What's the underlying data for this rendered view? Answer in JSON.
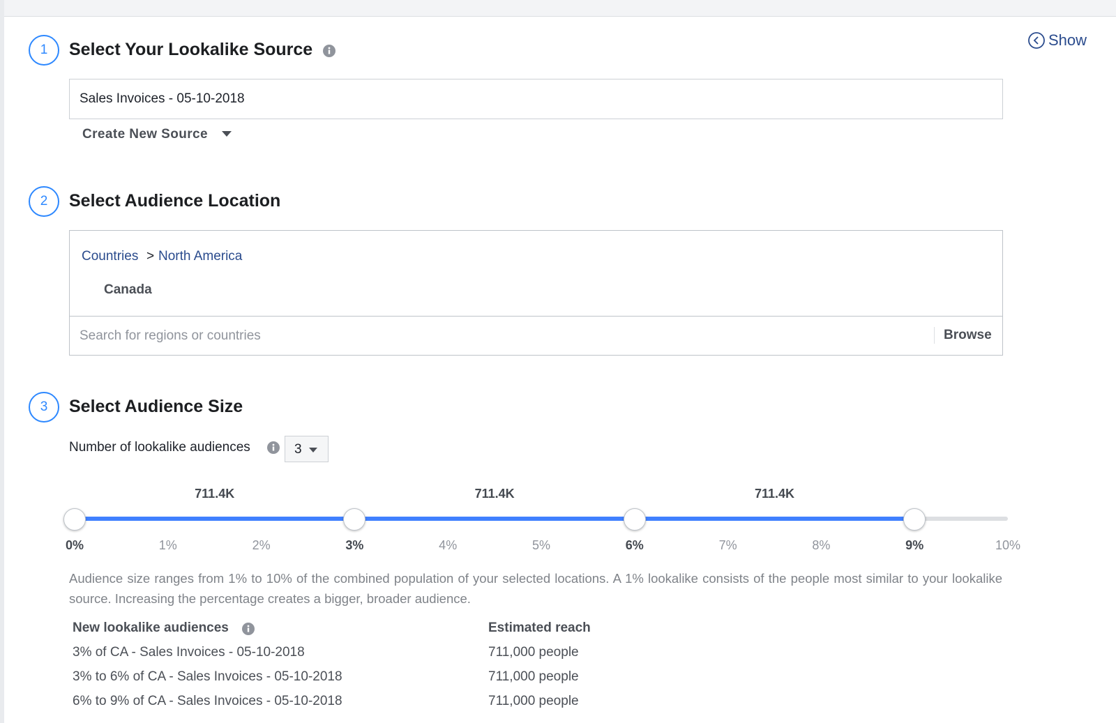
{
  "header": {
    "show_link": "Show"
  },
  "steps": [
    {
      "number": "1",
      "title": "Select Your Lookalike Source"
    },
    {
      "number": "2",
      "title": "Select Audience Location"
    },
    {
      "number": "3",
      "title": "Select Audience Size"
    }
  ],
  "source": {
    "value": "Sales Invoices - 05-10-2018",
    "create_button": "Create New Source"
  },
  "location": {
    "breadcrumb": [
      "Countries",
      "North America"
    ],
    "separator": ">",
    "selected": "Canada",
    "search_placeholder": "Search for regions or countries",
    "browse": "Browse"
  },
  "size": {
    "count_label": "Number of lookalike audiences",
    "count": 3,
    "ticks": [
      {
        "label": "0%",
        "selected": true
      },
      {
        "label": "1%",
        "selected": false
      },
      {
        "label": "2%",
        "selected": false
      },
      {
        "label": "3%",
        "selected": true
      },
      {
        "label": "4%",
        "selected": false
      },
      {
        "label": "5%",
        "selected": false
      },
      {
        "label": "6%",
        "selected": true
      },
      {
        "label": "7%",
        "selected": false
      },
      {
        "label": "8%",
        "selected": false
      },
      {
        "label": "9%",
        "selected": true
      },
      {
        "label": "10%",
        "selected": false
      }
    ],
    "segment_reach": [
      "711.4K",
      "711.4K",
      "711.4K"
    ],
    "description": "Audience size ranges from 1% to 10% of the combined population of your selected locations. A 1% lookalike consists of the people most similar to your lookalike source. Increasing the percentage creates a bigger, broader audience."
  },
  "table": {
    "headers": [
      "New lookalike audiences",
      "Estimated reach"
    ],
    "rows": [
      [
        "3% of CA - Sales Invoices - 05-10-2018",
        "711,000 people"
      ],
      [
        "3% to 6% of CA - Sales Invoices - 05-10-2018",
        "711,000 people"
      ],
      [
        "6% to 9% of CA - Sales Invoices - 05-10-2018",
        "711,000 people"
      ]
    ]
  }
}
